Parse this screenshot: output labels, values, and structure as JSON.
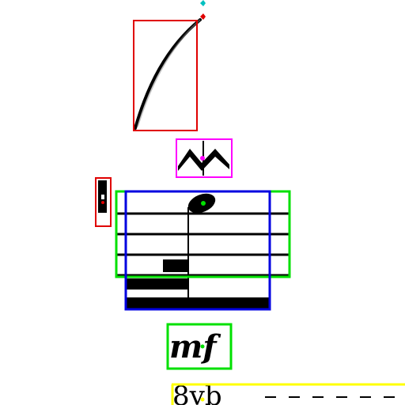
{
  "colors": {
    "background": "#ffffff",
    "ink": "#000000",
    "box_red": "#e00000",
    "box_magenta": "#ff00ff",
    "box_green": "#00e000",
    "box_blue": "#0000e0",
    "box_yellow": "#ffff00",
    "marker_cyan": "#00c0c0"
  },
  "annotations": [
    {
      "id": "slur",
      "symbol": "slur",
      "box_color": "red"
    },
    {
      "id": "turn",
      "symbol": "turn-ornament",
      "box_color": "magenta"
    },
    {
      "id": "clef",
      "symbol": "clef-fragment",
      "box_color": "red"
    },
    {
      "id": "staff-fragment",
      "symbol": "staff-with-note-rest-beams",
      "box_color": "green"
    },
    {
      "id": "measure",
      "symbol": "measure",
      "box_color": "blue"
    },
    {
      "id": "dynamic",
      "symbol": "dynamic-marking",
      "box_color": "green"
    },
    {
      "id": "ottava",
      "symbol": "ottava-bassa",
      "box_color": "yellow"
    }
  ],
  "texts": {
    "dynamic": "mf",
    "ottava": "8vb"
  }
}
